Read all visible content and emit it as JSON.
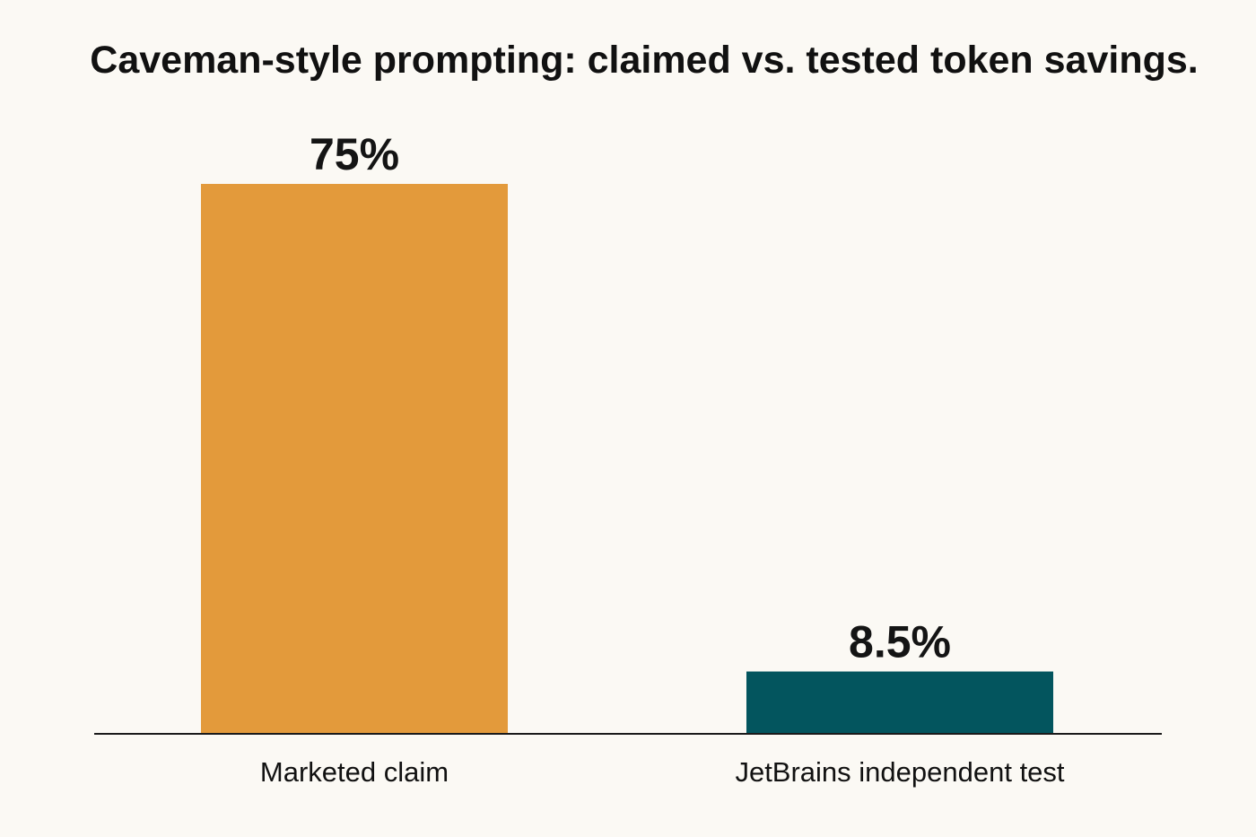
{
  "chart_data": {
    "type": "bar",
    "title": "Caveman-style prompting: claimed vs. tested token savings.",
    "categories": [
      "Marketed claim",
      "JetBrains independent test"
    ],
    "values": [
      75,
      8.5
    ],
    "value_labels": [
      "75%",
      "8.5%"
    ],
    "unit": "%",
    "ylim": [
      0,
      75
    ],
    "colors": [
      "#e39a3b",
      "#03555e"
    ],
    "xlabel": "",
    "ylabel": "",
    "grid": false,
    "legend": false
  }
}
